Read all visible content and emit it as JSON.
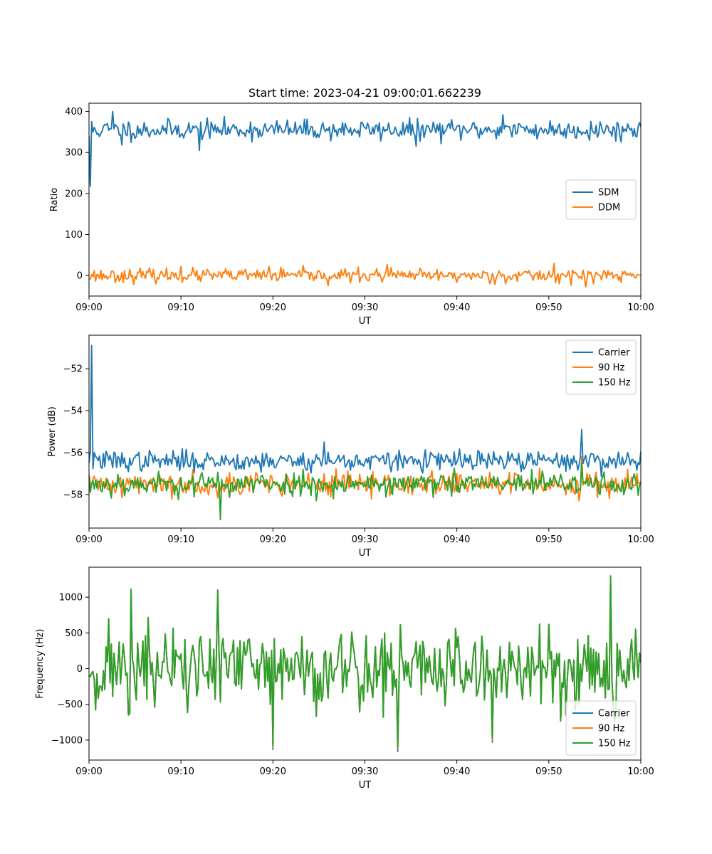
{
  "chart_data": [
    {
      "type": "line",
      "title": "Start time: 2023-04-21 09:00:01.662239",
      "xlabel": "UT",
      "ylabel": "Ratio",
      "xlim": [
        "09:00",
        "10:00"
      ],
      "ylim": [
        -50,
        420
      ],
      "x_ticks": [
        "09:00",
        "09:10",
        "09:20",
        "09:30",
        "09:40",
        "09:50",
        "10:00"
      ],
      "y_ticks": [
        "0",
        "100",
        "200",
        "300",
        "400"
      ],
      "legend_position": "center-right",
      "series": [
        {
          "name": "SDM",
          "color": "#1f77b4",
          "mean": 355,
          "noise": 15,
          "seed": 11,
          "points": [
            [
              "09:00",
              340
            ],
            [
              "09:00:10",
              218
            ],
            [
              "09:00:20",
              375
            ],
            [
              "09:02:30",
              400
            ],
            [
              "09:03:30",
              318
            ],
            [
              "09:12:00",
              305
            ],
            [
              "09:35:30",
              315
            ],
            [
              "09:45:00",
              392
            ]
          ]
        },
        {
          "name": "DDM",
          "color": "#ff7f0e",
          "mean": 0,
          "noise": 10,
          "seed": 23,
          "points": [
            [
              "09:10:00",
              22
            ],
            [
              "09:19:30",
              22
            ],
            [
              "09:26:00",
              -25
            ],
            [
              "09:32:30",
              27
            ],
            [
              "09:50:30",
              30
            ],
            [
              "09:54:00",
              -28
            ]
          ]
        }
      ]
    },
    {
      "type": "line",
      "title": "",
      "xlabel": "UT",
      "ylabel": "Power (dB)",
      "xlim": [
        "09:00",
        "10:00"
      ],
      "ylim": [
        -59.6,
        -50.4
      ],
      "x_ticks": [
        "09:00",
        "09:10",
        "09:20",
        "09:30",
        "09:40",
        "09:50",
        "10:00"
      ],
      "y_ticks": [
        "−58",
        "−56",
        "−54",
        "−52"
      ],
      "legend_position": "top-right",
      "series": [
        {
          "name": "Carrier",
          "color": "#1f77b4",
          "mean": -56.4,
          "noise": 0.3,
          "seed": 37,
          "points": [
            [
              "09:00",
              -56.5
            ],
            [
              "09:00:15",
              -50.9
            ],
            [
              "09:00:30",
              -56.0
            ],
            [
              "09:25:30",
              -55.5
            ],
            [
              "09:53:30",
              -54.9
            ]
          ]
        },
        {
          "name": "90 Hz",
          "color": "#ff7f0e",
          "mean": -57.5,
          "noise": 0.35,
          "seed": 41,
          "points": [
            [
              "09:53:30",
              -56.2
            ]
          ]
        },
        {
          "name": "150 Hz",
          "color": "#2ca02c",
          "mean": -57.5,
          "noise": 0.35,
          "seed": 53,
          "points": [
            [
              "09:14:20",
              -59.2
            ],
            [
              "09:53:30",
              -56.5
            ]
          ]
        }
      ]
    },
    {
      "type": "line",
      "title": "",
      "xlabel": "UT",
      "ylabel": "Frequency (Hz)",
      "xlim": [
        "09:00",
        "10:00"
      ],
      "ylim": [
        -1280,
        1420
      ],
      "x_ticks": [
        "09:00",
        "09:10",
        "09:20",
        "09:30",
        "09:40",
        "09:50",
        "10:00"
      ],
      "y_ticks": [
        "−1000",
        "−500",
        "0",
        "500",
        "1000"
      ],
      "legend_position": "bottom-right",
      "series": [
        {
          "name": "Carrier",
          "color": "#1f77b4",
          "mean": 0,
          "noise": 380,
          "seed": 71,
          "points": [
            [
              "09:04:30",
              1110
            ],
            [
              "09:14:00",
              1100
            ],
            [
              "09:20:00",
              -1130
            ],
            [
              "09:33:30",
              -1160
            ],
            [
              "09:43:50",
              -1030
            ],
            [
              "09:56:40",
              1290
            ]
          ]
        },
        {
          "name": "90 Hz",
          "color": "#ff7f0e",
          "mean": 0,
          "noise": 380,
          "seed": 71,
          "points": [
            [
              "09:04:30",
              1110
            ],
            [
              "09:14:00",
              1100
            ],
            [
              "09:20:00",
              -1100
            ],
            [
              "09:33:30",
              -1120
            ],
            [
              "09:43:50",
              -1000
            ],
            [
              "09:56:40",
              1290
            ]
          ]
        },
        {
          "name": "150 Hz",
          "color": "#2ca02c",
          "mean": 0,
          "noise": 380,
          "seed": 71,
          "points": [
            [
              "09:04:30",
              1110
            ],
            [
              "09:14:00",
              1100
            ],
            [
              "09:20:00",
              -1080
            ],
            [
              "09:33:30",
              -1100
            ],
            [
              "09:43:50",
              -980
            ],
            [
              "09:56:40",
              1300
            ]
          ]
        }
      ]
    }
  ]
}
